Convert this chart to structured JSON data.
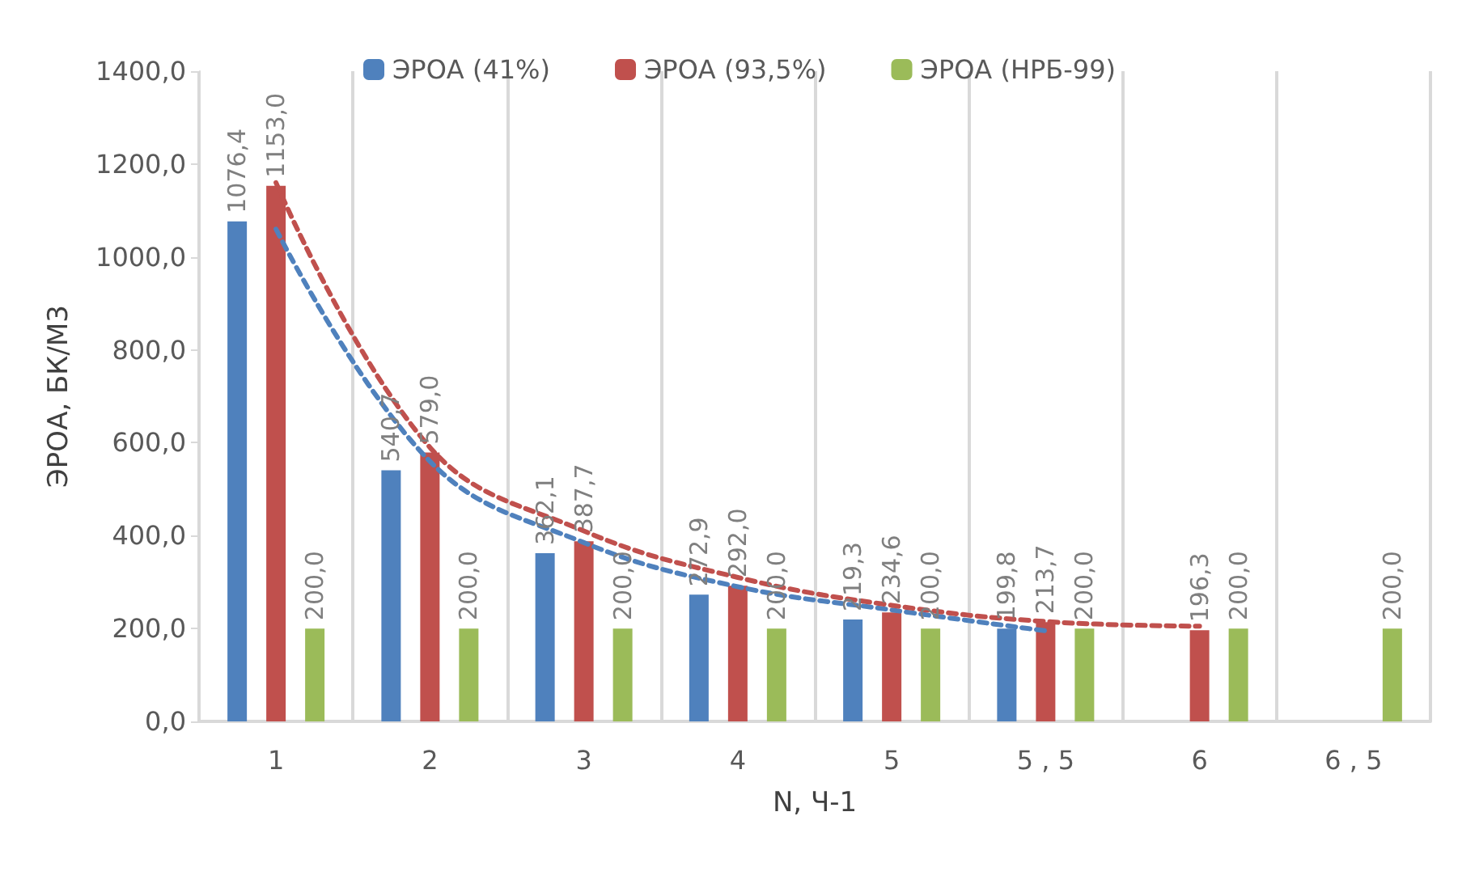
{
  "chart_data": {
    "type": "bar",
    "xlabel": "N, Ч-1",
    "ylabel": "ЭРОА, БК/М3",
    "categories": [
      "1",
      "2",
      "3",
      "4",
      "5",
      "5 , 5",
      "6",
      "6 , 5"
    ],
    "series": [
      {
        "name": "ЭРОА (41%)",
        "color": "#4f81bd",
        "values": [
          1076.4,
          540.7,
          362.1,
          272.9,
          219.3,
          199.8,
          null,
          null
        ],
        "value_labels": [
          "1076,4",
          "540,7",
          "362,1",
          "272,9",
          "219,3",
          "199,8",
          null,
          null
        ]
      },
      {
        "name": "ЭРОА (93,5%)",
        "color": "#c0504d",
        "values": [
          1153.0,
          579.0,
          387.7,
          292.0,
          234.6,
          213.7,
          196.3,
          null
        ],
        "value_labels": [
          "1153,0",
          "579,0",
          "387,7",
          "292,0",
          "234,6",
          "213,7",
          "196,3",
          null
        ]
      },
      {
        "name": "ЭРОА (НРБ-99)",
        "color": "#9bbb59",
        "values": [
          200.0,
          200.0,
          200.0,
          200.0,
          200.0,
          200.0,
          200.0,
          200.0
        ],
        "value_labels": [
          "200,0",
          "200,0",
          "200,0",
          "200,0",
          "200,0",
          "200,0",
          "200,0",
          "200,0"
        ]
      },
      {
        "type": "line",
        "color": "#4f81bd",
        "line_style": "dashed",
        "marker": "none",
        "x": [
          "1",
          "2",
          "3",
          "4",
          "5",
          "5 , 5"
        ],
        "values": [
          1060,
          560,
          385,
          290,
          240,
          195
        ]
      },
      {
        "type": "line",
        "color": "#c0504d",
        "line_style": "dashed",
        "marker": "none",
        "x": [
          "1",
          "2",
          "3",
          "4",
          "5",
          "5 , 5",
          "6"
        ],
        "values": [
          1160,
          590,
          410,
          310,
          250,
          215,
          205
        ]
      }
    ],
    "ylim": [
      0,
      1400
    ],
    "yticks": [
      {
        "value": 0,
        "label": "0,0"
      },
      {
        "value": 200,
        "label": "200,0"
      },
      {
        "value": 400,
        "label": "400,0"
      },
      {
        "value": 600,
        "label": "600,0"
      },
      {
        "value": 800,
        "label": "800,0"
      },
      {
        "value": 1000,
        "label": "1000,0"
      },
      {
        "value": 1200,
        "label": "1200,0"
      },
      {
        "value": 1400,
        "label": "1400,0"
      }
    ],
    "grid": "x",
    "legend": "top"
  }
}
